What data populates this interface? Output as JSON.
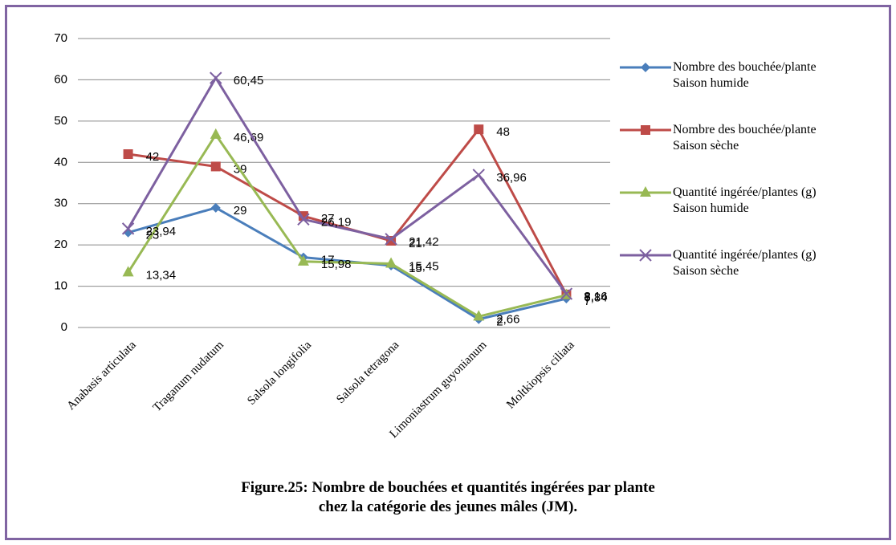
{
  "chart_data": {
    "type": "line",
    "categories": [
      "Anabasis articulata",
      "Traganum nudatum",
      "Salsola longifolia",
      "Salsola tetragona",
      "Limoniastrum  guyonianum",
      "Moltkiopsis ciliata"
    ],
    "series": [
      {
        "name": "Nombre des bouchée/plante\nSaison humide",
        "color": "#4a7ebb",
        "marker": "diamond",
        "values": [
          23,
          29,
          17,
          15,
          2,
          7
        ]
      },
      {
        "name": "Nombre des bouchée/plante\nSaison sèche",
        "color": "#be4b48",
        "marker": "square",
        "values": [
          42,
          39,
          27,
          21,
          48,
          8
        ]
      },
      {
        "name": "Quantité ingérée/plantes (g)\nSaison humide",
        "color": "#98b954",
        "marker": "triangle",
        "values": [
          13.34,
          46.69,
          15.98,
          15.45,
          2.66,
          7.84
        ],
        "value_labels": [
          "13,34",
          "46,69",
          "15,98",
          "15,45",
          "2,66",
          "7,84"
        ]
      },
      {
        "name": "Quantité ingérée/plantes (g)\nSaison sèche",
        "color": "#7d60a0",
        "marker": "x",
        "values": [
          23.94,
          60.45,
          26.19,
          21.42,
          36.96,
          8.16
        ],
        "value_labels": [
          "23,94",
          "60,45",
          "26,19",
          "21,42",
          "36,96",
          "8,16"
        ]
      }
    ],
    "ylim": [
      0,
      70
    ],
    "yticks": [
      0,
      10,
      20,
      30,
      40,
      50,
      60,
      70
    ],
    "grid": true,
    "legend": "right",
    "caption": "Figure.25: Nombre de bouchées et quantités ingérées par plante\nchez la catégorie des  jeunes mâles (JM)."
  }
}
